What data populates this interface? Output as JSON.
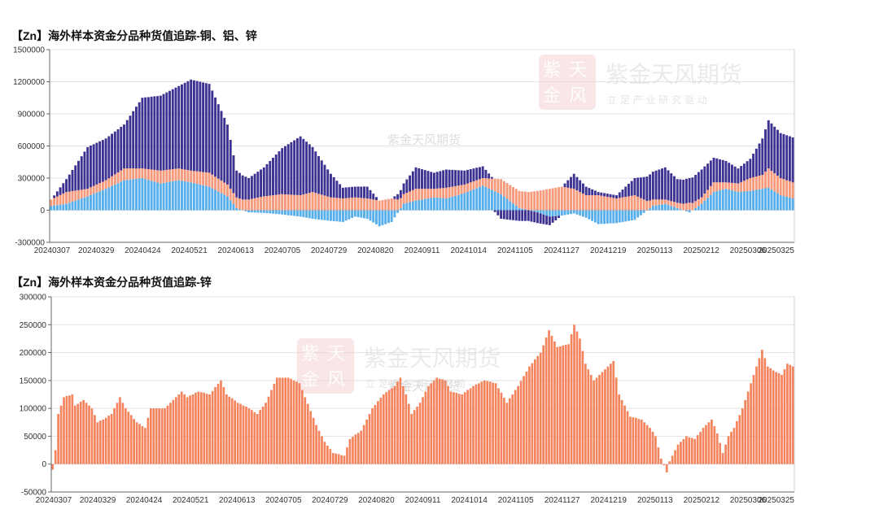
{
  "charts": {
    "top": {
      "title": "【Zn】海外样本资金分品种货值追踪-铜、铝、锌"
    },
    "bottom": {
      "title": "【Zn】海外样本资金分品种货值追踪-锌"
    }
  },
  "watermark": {
    "brand": "紫金天风期货",
    "tagline": "立 足 产 业   研 究 驱 动",
    "logo_glyphs": [
      "紫",
      "天",
      "金",
      "风"
    ],
    "center_text": "紫金天风期货"
  },
  "colors": {
    "copper": "#3d3291",
    "aluminum": "#f79a7c",
    "zinc_top": "#56aeed",
    "zinc_bottom": "#f4845e"
  },
  "chart_data": [
    {
      "type": "bar",
      "stacked": true,
      "title": "【Zn】海外样本资金分品种货值追踪-铜、铝、锌",
      "x_tick_labels": [
        "20240307",
        "20240329",
        "20240424",
        "20240521",
        "20240613",
        "20240705",
        "20240729",
        "20240820",
        "20240911",
        "20241014",
        "20241105",
        "20241127",
        "20241219",
        "20250113",
        "20250212",
        "20250306",
        "20250325"
      ],
      "ylim": [
        -300000,
        1500000
      ],
      "yticks": [
        -300000,
        0,
        300000,
        600000,
        900000,
        1200000,
        1500000
      ],
      "grid": true,
      "series": [
        {
          "key": "zinc",
          "color": "#56aeed",
          "anchors": [
            [
              0,
              40000
            ],
            [
              5,
              60000
            ],
            [
              12,
              130000
            ],
            [
              18,
              200000
            ],
            [
              24,
              280000
            ],
            [
              30,
              300000
            ],
            [
              36,
              250000
            ],
            [
              42,
              280000
            ],
            [
              46,
              260000
            ],
            [
              52,
              220000
            ],
            [
              58,
              130000
            ],
            [
              61,
              20000
            ],
            [
              65,
              -20000
            ],
            [
              70,
              -25000
            ],
            [
              76,
              -40000
            ],
            [
              82,
              -60000
            ],
            [
              86,
              -80000
            ],
            [
              92,
              -100000
            ],
            [
              96,
              -110000
            ],
            [
              100,
              -60000
            ],
            [
              104,
              -80000
            ],
            [
              108,
              -150000
            ],
            [
              112,
              -110000
            ],
            [
              116,
              60000
            ],
            [
              120,
              90000
            ],
            [
              126,
              120000
            ],
            [
              130,
              110000
            ],
            [
              136,
              160000
            ],
            [
              142,
              230000
            ],
            [
              148,
              150000
            ],
            [
              154,
              20000
            ],
            [
              160,
              -20000
            ],
            [
              164,
              -60000
            ],
            [
              168,
              -50000
            ],
            [
              172,
              -30000
            ],
            [
              176,
              -70000
            ],
            [
              180,
              -130000
            ],
            [
              186,
              -120000
            ],
            [
              192,
              -90000
            ],
            [
              198,
              40000
            ],
            [
              202,
              60000
            ],
            [
              206,
              20000
            ],
            [
              210,
              -20000
            ],
            [
              214,
              60000
            ],
            [
              218,
              170000
            ],
            [
              222,
              200000
            ],
            [
              226,
              170000
            ],
            [
              230,
              180000
            ],
            [
              234,
              200000
            ],
            [
              236,
              210000
            ],
            [
              240,
              140000
            ],
            [
              244,
              110000
            ]
          ]
        },
        {
          "key": "aluminum",
          "color": "#f79a7c",
          "anchors": [
            [
              0,
              60000
            ],
            [
              5,
              110000
            ],
            [
              12,
              70000
            ],
            [
              18,
              80000
            ],
            [
              24,
              110000
            ],
            [
              30,
              90000
            ],
            [
              36,
              120000
            ],
            [
              42,
              110000
            ],
            [
              46,
              110000
            ],
            [
              52,
              130000
            ],
            [
              58,
              110000
            ],
            [
              61,
              100000
            ],
            [
              65,
              100000
            ],
            [
              70,
              130000
            ],
            [
              76,
              150000
            ],
            [
              82,
              140000
            ],
            [
              86,
              170000
            ],
            [
              92,
              120000
            ],
            [
              96,
              110000
            ],
            [
              100,
              120000
            ],
            [
              104,
              110000
            ],
            [
              108,
              90000
            ],
            [
              112,
              110000
            ],
            [
              116,
              90000
            ],
            [
              120,
              110000
            ],
            [
              126,
              80000
            ],
            [
              130,
              100000
            ],
            [
              136,
              80000
            ],
            [
              142,
              70000
            ],
            [
              148,
              140000
            ],
            [
              154,
              160000
            ],
            [
              160,
              180000
            ],
            [
              164,
              200000
            ],
            [
              168,
              220000
            ],
            [
              172,
              200000
            ],
            [
              176,
              140000
            ],
            [
              180,
              140000
            ],
            [
              186,
              110000
            ],
            [
              192,
              140000
            ],
            [
              198,
              60000
            ],
            [
              202,
              40000
            ],
            [
              206,
              50000
            ],
            [
              210,
              70000
            ],
            [
              214,
              60000
            ],
            [
              218,
              90000
            ],
            [
              222,
              60000
            ],
            [
              226,
              80000
            ],
            [
              230,
              120000
            ],
            [
              234,
              130000
            ],
            [
              236,
              180000
            ],
            [
              240,
              160000
            ],
            [
              244,
              150000
            ]
          ]
        },
        {
          "key": "copper",
          "color": "#3d3291",
          "anchors": [
            [
              0,
              0
            ],
            [
              5,
              120000
            ],
            [
              12,
              390000
            ],
            [
              18,
              390000
            ],
            [
              24,
              410000
            ],
            [
              30,
              660000
            ],
            [
              36,
              700000
            ],
            [
              42,
              770000
            ],
            [
              46,
              850000
            ],
            [
              52,
              830000
            ],
            [
              58,
              560000
            ],
            [
              61,
              250000
            ],
            [
              65,
              200000
            ],
            [
              70,
              270000
            ],
            [
              76,
              430000
            ],
            [
              82,
              550000
            ],
            [
              86,
              420000
            ],
            [
              92,
              220000
            ],
            [
              96,
              100000
            ],
            [
              100,
              100000
            ],
            [
              104,
              110000
            ],
            [
              108,
              0
            ],
            [
              112,
              0
            ],
            [
              116,
              100000
            ],
            [
              120,
              200000
            ],
            [
              126,
              150000
            ],
            [
              130,
              170000
            ],
            [
              136,
              130000
            ],
            [
              142,
              110000
            ],
            [
              148,
              -80000
            ],
            [
              154,
              -100000
            ],
            [
              160,
              -100000
            ],
            [
              164,
              -80000
            ],
            [
              168,
              0
            ],
            [
              172,
              140000
            ],
            [
              176,
              80000
            ],
            [
              180,
              30000
            ],
            [
              186,
              30000
            ],
            [
              192,
              160000
            ],
            [
              198,
              260000
            ],
            [
              202,
              300000
            ],
            [
              206,
              220000
            ],
            [
              210,
              230000
            ],
            [
              214,
              260000
            ],
            [
              218,
              230000
            ],
            [
              222,
              200000
            ],
            [
              226,
              140000
            ],
            [
              230,
              180000
            ],
            [
              234,
              340000
            ],
            [
              236,
              450000
            ],
            [
              240,
              420000
            ],
            [
              244,
              420000
            ]
          ]
        }
      ]
    },
    {
      "type": "bar",
      "title": "【Zn】海外样本资金分品种货值追踪-锌",
      "x_tick_labels": [
        "20240307",
        "20240329",
        "20240424",
        "20240521",
        "20240613",
        "20240705",
        "20240729",
        "20240820",
        "20240911",
        "20241014",
        "20241105",
        "20241127",
        "20241219",
        "20250113",
        "20250212",
        "20250306",
        "20250325"
      ],
      "ylim": [
        -50000,
        300000
      ],
      "yticks": [
        -50000,
        0,
        50000,
        100000,
        150000,
        200000,
        250000,
        300000
      ],
      "grid": true,
      "series": [
        {
          "key": "zinc",
          "color": "#f4845e",
          "anchors": [
            [
              0,
              -10000
            ],
            [
              1,
              25000
            ],
            [
              2,
              90000
            ],
            [
              4,
              120000
            ],
            [
              7,
              125000
            ],
            [
              8,
              105000
            ],
            [
              11,
              115000
            ],
            [
              14,
              100000
            ],
            [
              16,
              75000
            ],
            [
              18,
              80000
            ],
            [
              21,
              90000
            ],
            [
              24,
              120000
            ],
            [
              26,
              100000
            ],
            [
              30,
              75000
            ],
            [
              33,
              65000
            ],
            [
              35,
              100000
            ],
            [
              40,
              100000
            ],
            [
              42,
              110000
            ],
            [
              46,
              130000
            ],
            [
              48,
              120000
            ],
            [
              52,
              130000
            ],
            [
              56,
              125000
            ],
            [
              60,
              150000
            ],
            [
              62,
              125000
            ],
            [
              66,
              110000
            ],
            [
              70,
              100000
            ],
            [
              73,
              90000
            ],
            [
              76,
              110000
            ],
            [
              80,
              155000
            ],
            [
              84,
              155000
            ],
            [
              88,
              145000
            ],
            [
              90,
              120000
            ],
            [
              94,
              70000
            ],
            [
              97,
              40000
            ],
            [
              100,
              20000
            ],
            [
              104,
              15000
            ],
            [
              106,
              45000
            ],
            [
              110,
              60000
            ],
            [
              114,
              100000
            ],
            [
              118,
              125000
            ],
            [
              122,
              140000
            ],
            [
              124,
              155000
            ],
            [
              126,
              125000
            ],
            [
              128,
              90000
            ],
            [
              131,
              110000
            ],
            [
              134,
              140000
            ],
            [
              137,
              155000
            ],
            [
              140,
              150000
            ],
            [
              142,
              130000
            ],
            [
              146,
              125000
            ],
            [
              150,
              140000
            ],
            [
              154,
              150000
            ],
            [
              158,
              145000
            ],
            [
              162,
              110000
            ],
            [
              166,
              140000
            ],
            [
              170,
              175000
            ],
            [
              174,
              200000
            ],
            [
              177,
              240000
            ],
            [
              180,
              210000
            ],
            [
              184,
              215000
            ],
            [
              186,
              250000
            ],
            [
              188,
              225000
            ],
            [
              190,
              180000
            ],
            [
              193,
              150000
            ],
            [
              196,
              165000
            ],
            [
              200,
              185000
            ],
            [
              202,
              125000
            ],
            [
              206,
              85000
            ],
            [
              210,
              80000
            ],
            [
              213,
              65000
            ],
            [
              215,
              50000
            ],
            [
              217,
              10000
            ],
            [
              219,
              -15000
            ],
            [
              220,
              5000
            ],
            [
              223,
              35000
            ],
            [
              226,
              50000
            ],
            [
              229,
              45000
            ],
            [
              232,
              65000
            ],
            [
              235,
              80000
            ],
            [
              237,
              55000
            ],
            [
              239,
              20000
            ],
            [
              241,
              50000
            ],
            [
              243,
              65000
            ],
            [
              246,
              100000
            ],
            [
              248,
              130000
            ],
            [
              251,
              175000
            ],
            [
              253,
              205000
            ],
            [
              255,
              175000
            ],
            [
              258,
              165000
            ],
            [
              260,
              160000
            ],
            [
              262,
              180000
            ],
            [
              264,
              175000
            ]
          ]
        }
      ]
    }
  ]
}
